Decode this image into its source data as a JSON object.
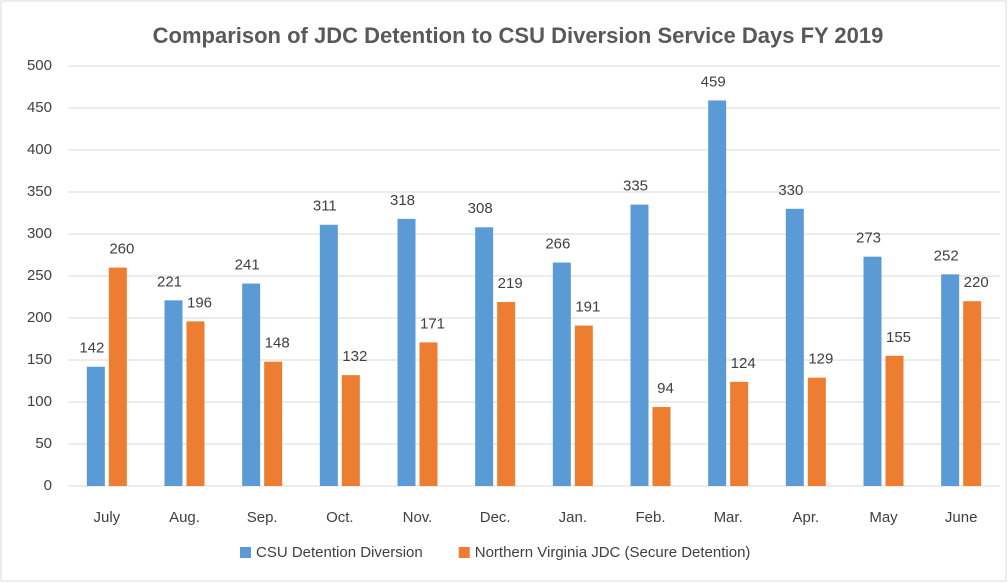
{
  "chart_data": {
    "type": "bar",
    "title": "Comparison of JDC Detention to CSU Diversion Service Days FY 2019",
    "categories": [
      "July",
      "Aug.",
      "Sep.",
      "Oct.",
      "Nov.",
      "Dec.",
      "Jan.",
      "Feb.",
      "Mar.",
      "Apr.",
      "May",
      "June"
    ],
    "series": [
      {
        "name": "CSU Detention Diversion",
        "color": "#5b9bd5",
        "values": [
          142,
          221,
          241,
          311,
          318,
          308,
          266,
          335,
          459,
          330,
          273,
          252
        ]
      },
      {
        "name": "Northern Virginia JDC (Secure Detention)",
        "color": "#ed7d31",
        "values": [
          260,
          196,
          148,
          132,
          171,
          219,
          191,
          94,
          124,
          129,
          155,
          220
        ]
      }
    ],
    "ylim": [
      0,
      500
    ],
    "yticks": [
      0,
      50,
      100,
      150,
      200,
      250,
      300,
      350,
      400,
      450,
      500
    ],
    "grid": true,
    "legend": "bottom"
  }
}
